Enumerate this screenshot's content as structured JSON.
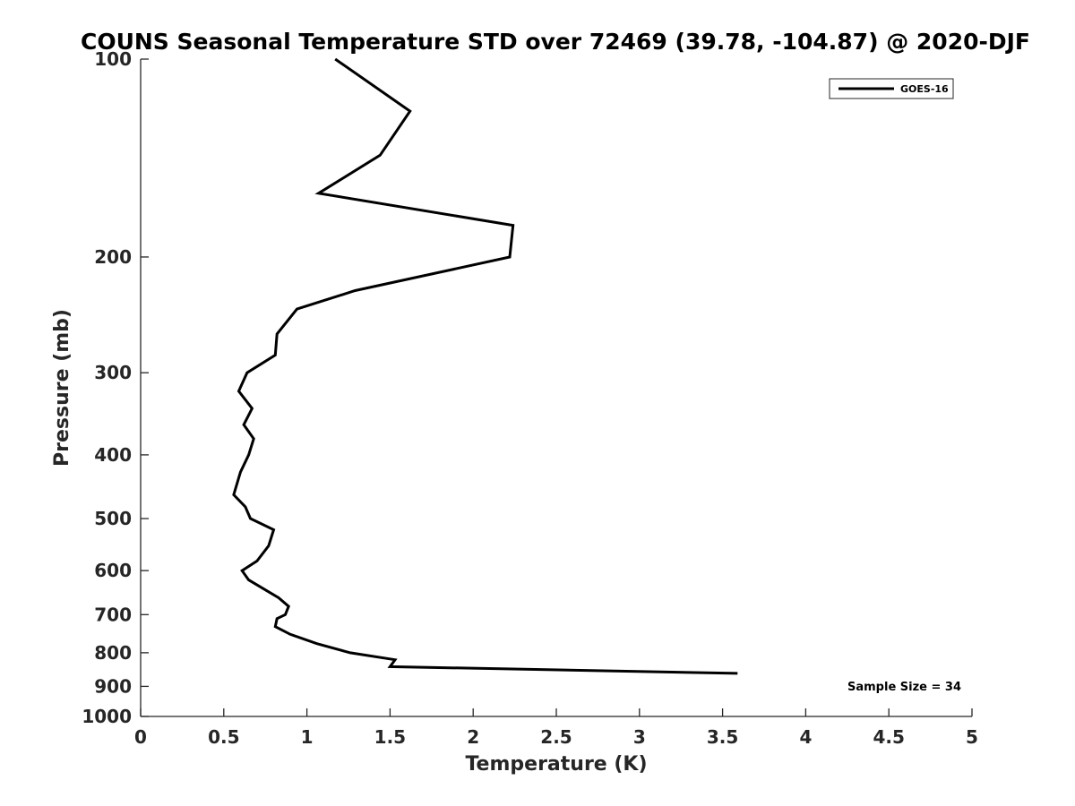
{
  "chart_data": {
    "type": "line",
    "title": "COUNS Seasonal Temperature STD over 72469 (39.78, -104.87) @ 2020-DJF",
    "xlabel": "Temperature (K)",
    "ylabel": "Pressure (mb)",
    "xlim": [
      0,
      5
    ],
    "ylim": [
      100,
      1000
    ],
    "y_scale": "log",
    "y_reversed": true,
    "grid": false,
    "legend_position": "top-right",
    "x_ticks": [
      "0",
      "0.5",
      "1",
      "1.5",
      "2",
      "2.5",
      "3",
      "3.5",
      "4",
      "4.5",
      "5"
    ],
    "y_ticks": [
      "100",
      "200",
      "300",
      "400",
      "500",
      "600",
      "700",
      "800",
      "900",
      "1000"
    ],
    "series": [
      {
        "name": "GOES-16",
        "color": "#000000",
        "points": [
          {
            "x": 1.17,
            "y": 100
          },
          {
            "x": 1.62,
            "y": 120
          },
          {
            "x": 1.44,
            "y": 140
          },
          {
            "x": 1.07,
            "y": 160
          },
          {
            "x": 2.24,
            "y": 179
          },
          {
            "x": 2.22,
            "y": 200
          },
          {
            "x": 1.29,
            "y": 225
          },
          {
            "x": 0.94,
            "y": 240
          },
          {
            "x": 0.82,
            "y": 262
          },
          {
            "x": 0.81,
            "y": 282
          },
          {
            "x": 0.64,
            "y": 300
          },
          {
            "x": 0.59,
            "y": 320
          },
          {
            "x": 0.67,
            "y": 340
          },
          {
            "x": 0.62,
            "y": 360
          },
          {
            "x": 0.68,
            "y": 378
          },
          {
            "x": 0.65,
            "y": 400
          },
          {
            "x": 0.6,
            "y": 425
          },
          {
            "x": 0.56,
            "y": 460
          },
          {
            "x": 0.63,
            "y": 480
          },
          {
            "x": 0.66,
            "y": 500
          },
          {
            "x": 0.8,
            "y": 520
          },
          {
            "x": 0.77,
            "y": 550
          },
          {
            "x": 0.7,
            "y": 580
          },
          {
            "x": 0.61,
            "y": 600
          },
          {
            "x": 0.65,
            "y": 620
          },
          {
            "x": 0.83,
            "y": 660
          },
          {
            "x": 0.89,
            "y": 680
          },
          {
            "x": 0.87,
            "y": 700
          },
          {
            "x": 0.82,
            "y": 710
          },
          {
            "x": 0.81,
            "y": 730
          },
          {
            "x": 0.9,
            "y": 750
          },
          {
            "x": 1.06,
            "y": 775
          },
          {
            "x": 1.26,
            "y": 800
          },
          {
            "x": 1.53,
            "y": 820
          },
          {
            "x": 1.5,
            "y": 840
          },
          {
            "x": 3.59,
            "y": 860
          }
        ]
      }
    ],
    "annotation": "Sample Size = 34"
  }
}
